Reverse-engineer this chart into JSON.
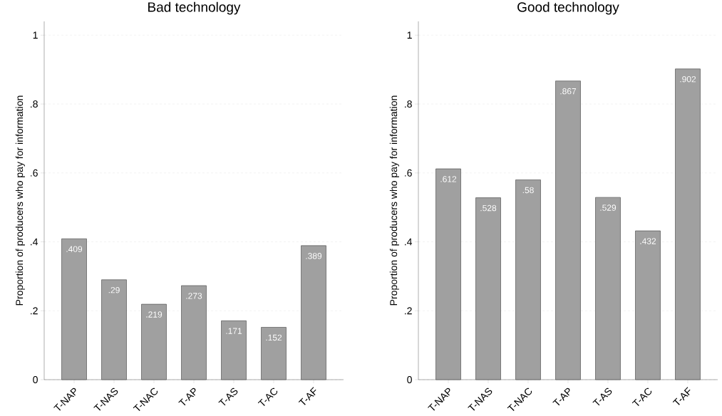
{
  "chart_data": [
    {
      "type": "bar",
      "title": "Bad technology",
      "ylabel": "Proportion of producers who pay for information",
      "categories": [
        "T-NAP",
        "T-NAS",
        "T-NAC",
        "T-AP",
        "T-AS",
        "T-AC",
        "T-AF"
      ],
      "values": [
        0.409,
        0.29,
        0.219,
        0.273,
        0.171,
        0.152,
        0.389
      ],
      "value_labels": [
        ".409",
        ".29",
        ".219",
        ".273",
        ".171",
        ".152",
        ".389"
      ],
      "color": "#a0a0a0",
      "ylim": [
        0,
        1.04
      ],
      "yticks": [
        0,
        {
          "value": 0.2,
          "label": ".2"
        },
        {
          "value": 0.4,
          "label": ".4"
        },
        {
          "value": 0.6,
          "label": ".6"
        },
        {
          "value": 0.8,
          "label": ".8"
        },
        1
      ],
      "grid": "y"
    },
    {
      "type": "bar",
      "title": "Good technology",
      "ylabel": "Proportion of producers who pay for information",
      "categories": [
        "T-NAP",
        "T-NAS",
        "T-NAC",
        "T-AP",
        "T-AS",
        "T-AC",
        "T-AF"
      ],
      "values": [
        0.612,
        0.528,
        0.58,
        0.867,
        0.529,
        0.432,
        0.902
      ],
      "value_labels": [
        ".612",
        ".528",
        ".58",
        ".867",
        ".529",
        ".432",
        ".902"
      ],
      "color": "#a0a0a0",
      "ylim": [
        0,
        1.04
      ],
      "yticks": [
        0,
        {
          "value": 0.2,
          "label": ".2"
        },
        {
          "value": 0.4,
          "label": ".4"
        },
        {
          "value": 0.6,
          "label": ".6"
        },
        {
          "value": 0.8,
          "label": ".8"
        },
        1
      ],
      "grid": "y"
    }
  ]
}
